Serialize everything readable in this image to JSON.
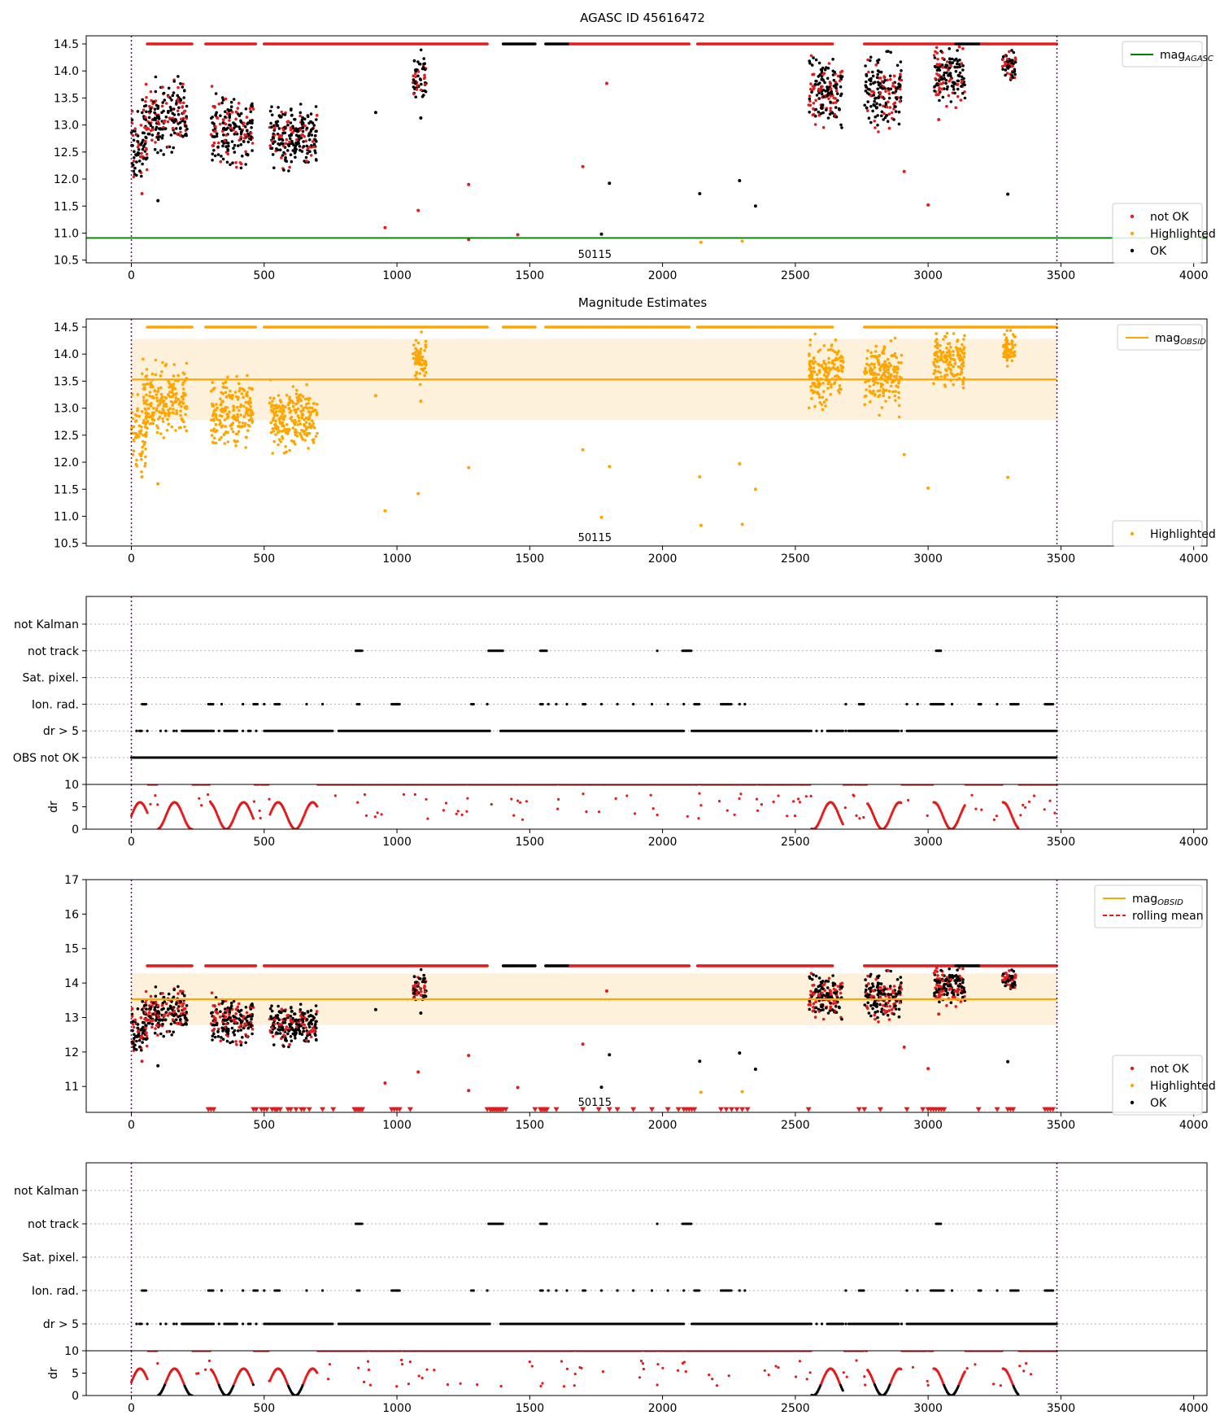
{
  "figure": {
    "title": "AGASC ID 45616472"
  },
  "colors": {
    "not_ok": "#e41a1c",
    "highlighted": "#ffa500",
    "ok": "#000000",
    "agasc_line": "#008000",
    "obsid_line": "#ffa500",
    "band": "#fdf1dc",
    "obs_boundary": "#800080",
    "grid": "#b0b0b0",
    "rolling_mean": "#e41a1c"
  },
  "chart_data": [
    {
      "type": "scatter",
      "title": "",
      "xlim": [
        -170,
        4050
      ],
      "ylim": [
        10.45,
        14.65
      ],
      "xticks": [
        0,
        500,
        1000,
        1500,
        2000,
        2500,
        3000,
        3500,
        4000
      ],
      "yticks": [
        10.5,
        11.0,
        11.5,
        12.0,
        12.5,
        13.0,
        13.5,
        14.0,
        14.5
      ],
      "ytick_labels": [
        "10.5",
        "11.0",
        "11.5",
        "12.0",
        "12.5",
        "13.0",
        "13.5",
        "14.0",
        "14.5"
      ],
      "obs_boundaries": [
        0,
        3485
      ],
      "obsid_label": "50115",
      "obsid_label_x": 1745,
      "reference_line": {
        "name": "mag_AGASC",
        "value": 10.91
      },
      "legend_line": {
        "text": "mag",
        "sub": "AGASC",
        "placement": "top-right"
      },
      "legend_points": {
        "entries": [
          "not OK",
          "Highlighted",
          "OK"
        ],
        "placement": "bottom-right"
      },
      "series": [
        {
          "name": "not OK",
          "points": [
            [
              40,
              11.73
            ],
            [
              1270,
              11.9
            ],
            [
              1700,
              12.23
            ],
            [
              2910,
              12.14
            ],
            [
              3000,
              11.52
            ],
            [
              1080,
              11.42
            ],
            [
              955,
              11.1
            ],
            [
              1270,
              10.88
            ],
            [
              1455,
              10.97
            ],
            [
              1790,
              13.77
            ],
            [
              3040,
              13.1
            ]
          ]
        },
        {
          "name": "Highlighted",
          "points": [
            [
              2145,
              10.83
            ],
            [
              2300,
              10.85
            ]
          ]
        },
        {
          "name": "OK",
          "points": [
            [
              100,
              11.6
            ],
            [
              920,
              13.23
            ],
            [
              1090,
              13.13
            ],
            [
              1800,
              11.92
            ],
            [
              2140,
              11.73
            ],
            [
              2290,
              11.97
            ],
            [
              2350,
              11.5
            ],
            [
              3300,
              11.72
            ],
            [
              1770,
              10.98
            ]
          ]
        }
      ]
    },
    {
      "type": "scatter",
      "title": "Magnitude Estimates",
      "xlim": [
        -170,
        4050
      ],
      "ylim": [
        10.45,
        14.65
      ],
      "xticks": [
        0,
        500,
        1000,
        1500,
        2000,
        2500,
        3000,
        3500,
        4000
      ],
      "yticks": [
        10.5,
        11.0,
        11.5,
        12.0,
        12.5,
        13.0,
        13.5,
        14.0,
        14.5
      ],
      "ytick_labels": [
        "10.5",
        "11.0",
        "11.5",
        "12.0",
        "12.5",
        "13.0",
        "13.5",
        "14.0",
        "14.5"
      ],
      "obs_boundaries": [
        0,
        3485
      ],
      "obsid_label": "50115",
      "obsid_label_x": 1745,
      "reference_line": {
        "name": "mag_OBSID",
        "value": 13.53
      },
      "band": [
        12.78,
        14.28
      ],
      "legend_line": {
        "text": "mag",
        "sub": "OBSID",
        "placement": "top-right"
      },
      "legend_points": {
        "entries": [
          "Highlighted"
        ],
        "placement": "bottom-right"
      },
      "series": [
        {
          "name": "Highlighted",
          "points": [
            [
              40,
              11.73
            ],
            [
              100,
              11.6
            ],
            [
              920,
              13.23
            ],
            [
              1090,
              13.13
            ],
            [
              1270,
              11.9
            ],
            [
              1700,
              12.23
            ],
            [
              1800,
              11.92
            ],
            [
              2140,
              11.73
            ],
            [
              2145,
              10.83
            ],
            [
              2290,
              11.97
            ],
            [
              2300,
              10.85
            ],
            [
              2350,
              11.5
            ],
            [
              2910,
              12.14
            ],
            [
              3000,
              11.52
            ],
            [
              3300,
              11.72
            ],
            [
              1770,
              10.98
            ],
            [
              1080,
              11.42
            ],
            [
              955,
              11.1
            ]
          ]
        }
      ]
    },
    {
      "type": "scatter",
      "title": "",
      "xlim": [
        -170,
        4050
      ],
      "categories": [
        "not Kalman",
        "not track",
        "Sat. pixel.",
        "Ion. rad.",
        "dr > 5",
        "OBS not OK"
      ],
      "obs_boundaries": [
        0,
        3485
      ],
      "flag_ranges": {
        "not track": [
          [
            845,
            870
          ],
          [
            1345,
            1400
          ],
          [
            1540,
            1565
          ],
          [
            2075,
            2110
          ],
          [
            3030,
            3050
          ]
        ],
        "not track_points": [
          1980
        ],
        "Ion. rad.": [
          [
            40,
            55
          ],
          [
            290,
            310
          ],
          [
            460,
            475
          ],
          [
            540,
            560
          ],
          [
            850,
            860
          ],
          [
            980,
            1010
          ],
          [
            1280,
            1290
          ],
          [
            1540,
            1550
          ],
          [
            1700,
            1710
          ],
          [
            2120,
            2140
          ],
          [
            2220,
            2260
          ],
          [
            2740,
            2760
          ],
          [
            3010,
            3060
          ],
          [
            3190,
            3200
          ],
          [
            3310,
            3340
          ],
          [
            3440,
            3470
          ]
        ],
        "Ion. rad._points": [
          340,
          420,
          500,
          660,
          720,
          1000,
          1340,
          1570,
          1600,
          1640,
          1770,
          1830,
          1890,
          1960,
          2020,
          2080,
          2290,
          2310,
          2690,
          2920,
          2960,
          3090,
          3260
        ],
        "dr > 5": [
          [
            30,
            40
          ],
          [
            190,
            310
          ],
          [
            350,
            400
          ],
          [
            440,
            450
          ],
          [
            500,
            760
          ],
          [
            780,
            1350
          ],
          [
            1390,
            2080
          ],
          [
            2110,
            2560
          ],
          [
            2620,
            2680
          ],
          [
            2700,
            2890
          ],
          [
            2920,
            3485
          ]
        ],
        "dr > 5_points": [
          20,
          60,
          110,
          130,
          160,
          170,
          330,
          420,
          470,
          2580,
          2600,
          2690,
          2900
        ],
        "OBS not OK": [
          [
            0,
            3485
          ]
        ]
      }
    },
    {
      "type": "scatter",
      "title": "",
      "xlim": [
        -170,
        4050
      ],
      "ylim": [
        0,
        10
      ],
      "ylabel": "dr",
      "xticks": [
        0,
        500,
        1000,
        1500,
        2000,
        2500,
        3000,
        3500,
        4000
      ],
      "yticks": [
        0,
        5,
        10
      ],
      "ytick_labels": [
        "0",
        "5",
        "10"
      ],
      "obs_boundaries": [
        0,
        3485
      ]
    },
    {
      "type": "scatter",
      "title": "",
      "xlim": [
        -170,
        4050
      ],
      "ylim": [
        10.25,
        17.0
      ],
      "xticks": [
        0,
        500,
        1000,
        1500,
        2000,
        2500,
        3000,
        3500,
        4000
      ],
      "yticks": [
        11,
        12,
        13,
        14,
        15,
        16,
        17
      ],
      "ytick_labels": [
        "11",
        "12",
        "13",
        "14",
        "15",
        "16",
        "17"
      ],
      "obs_boundaries": [
        0,
        3485
      ],
      "obsid_label": "50115",
      "obsid_label_x": 1745,
      "reference_line": {
        "name": "mag_OBSID",
        "value": 13.53
      },
      "band": [
        12.78,
        14.28
      ],
      "legend_line": {
        "entries": [
          {
            "text": "mag",
            "sub": "OBSID"
          },
          {
            "text": "rolling mean",
            "sub": ""
          }
        ],
        "placement": "top-right"
      },
      "legend_points": {
        "entries": [
          "not OK",
          "Highlighted",
          "OK"
        ],
        "placement": "bottom-right"
      },
      "limit_markers_y": 10.33,
      "limit_markers_x": [
        290,
        300,
        310,
        460,
        470,
        490,
        500,
        510,
        530,
        540,
        545,
        550,
        560,
        590,
        600,
        620,
        640,
        650,
        670,
        720,
        760,
        840,
        845,
        850,
        855,
        860,
        865,
        870,
        980,
        990,
        1000,
        1010,
        1050,
        1340,
        1350,
        1355,
        1360,
        1365,
        1370,
        1375,
        1380,
        1385,
        1390,
        1395,
        1400,
        1410,
        1520,
        1540,
        1545,
        1550,
        1555,
        1560,
        1565,
        1600,
        1700,
        1760,
        1800,
        1830,
        1890,
        1960,
        2020,
        2060,
        2080,
        2090,
        2100,
        2110,
        2120,
        2220,
        2240,
        2260,
        2280,
        2300,
        2320,
        2550,
        2740,
        2760,
        2820,
        2920,
        2980,
        3000,
        3010,
        3020,
        3030,
        3040,
        3050,
        3060,
        3190,
        3260,
        3300,
        3310,
        3320,
        3440,
        3450,
        3460,
        3470
      ]
    },
    {
      "type": "scatter",
      "title": "",
      "xlim": [
        -170,
        4050
      ],
      "categories": [
        "not Kalman",
        "not track",
        "Sat. pixel.",
        "Ion. rad.",
        "dr > 5"
      ],
      "obs_boundaries": [
        0,
        3485
      ]
    },
    {
      "type": "scatter",
      "title": "",
      "xlim": [
        -170,
        4050
      ],
      "ylim": [
        0,
        10
      ],
      "ylabel": "dr",
      "xticks": [
        0,
        500,
        1000,
        1500,
        2000,
        2500,
        3000,
        3500,
        4000
      ],
      "yticks": [
        0,
        5,
        10
      ],
      "ytick_labels": [
        "0",
        "5",
        "10"
      ],
      "obs_boundaries": [
        0,
        3485
      ]
    }
  ]
}
